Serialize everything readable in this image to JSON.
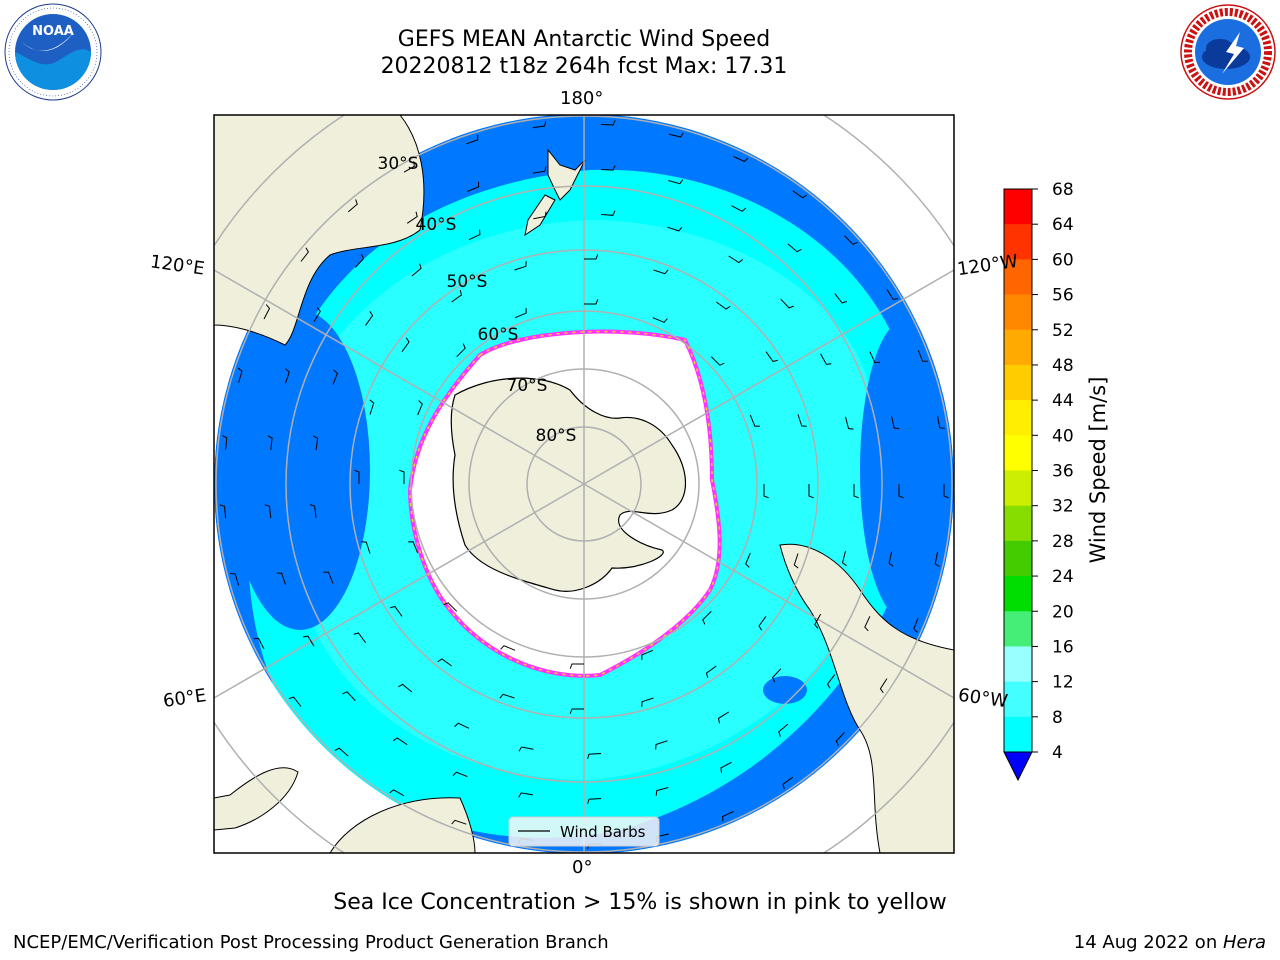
{
  "title": {
    "line1": "GEFS MEAN Antarctic Wind Speed",
    "line2": "20220812 t18z 264h fcst   Max: 17.31"
  },
  "map": {
    "projection": "south-polar-stereographic",
    "longitude_labels": {
      "top": "180°",
      "bottom": "0°",
      "upper_left": "120°E",
      "upper_right": "120°W",
      "lower_left": "60°E",
      "lower_right": "60°W"
    },
    "latitude_labels": [
      "30°S",
      "40°S",
      "50°S",
      "60°S",
      "70°S",
      "80°S"
    ],
    "legend_label": "Wind Barbs",
    "colors": {
      "land": "#efefdc",
      "ice_edge": "#ff33ff",
      "ice_edge_inner": "#ffcc33",
      "ocean_4": "#0078ff",
      "ocean_8": "#00ffff",
      "ocean_12": "#44ffff",
      "ocean_16": "#99ffff"
    }
  },
  "colorbar": {
    "label": "Wind Speed [m/s]",
    "ticks": [
      "68",
      "64",
      "60",
      "56",
      "52",
      "48",
      "44",
      "40",
      "36",
      "32",
      "28",
      "24",
      "20",
      "16",
      "12",
      "8",
      "4"
    ],
    "colors": [
      "#ff0000",
      "#ff3300",
      "#ff6600",
      "#ff8800",
      "#ffaa00",
      "#ffcc00",
      "#ffee00",
      "#ffff00",
      "#ccee00",
      "#88dd00",
      "#44cc00",
      "#00dd00",
      "#44ee77",
      "#99ffff",
      "#44ffff",
      "#00ffff",
      "#0077ff"
    ],
    "extend_color": "#0000ff"
  },
  "caption": "Sea Ice Concentration > 15% is shown in pink to yellow",
  "footer": {
    "left": "NCEP/EMC/Verification Post Processing Product Generation Branch",
    "right_prefix": "14 Aug 2022 on ",
    "right_machine": "Hera"
  },
  "logos": {
    "noaa": "NOAA",
    "nws": "NATIONAL WEATHER SERVICE"
  }
}
